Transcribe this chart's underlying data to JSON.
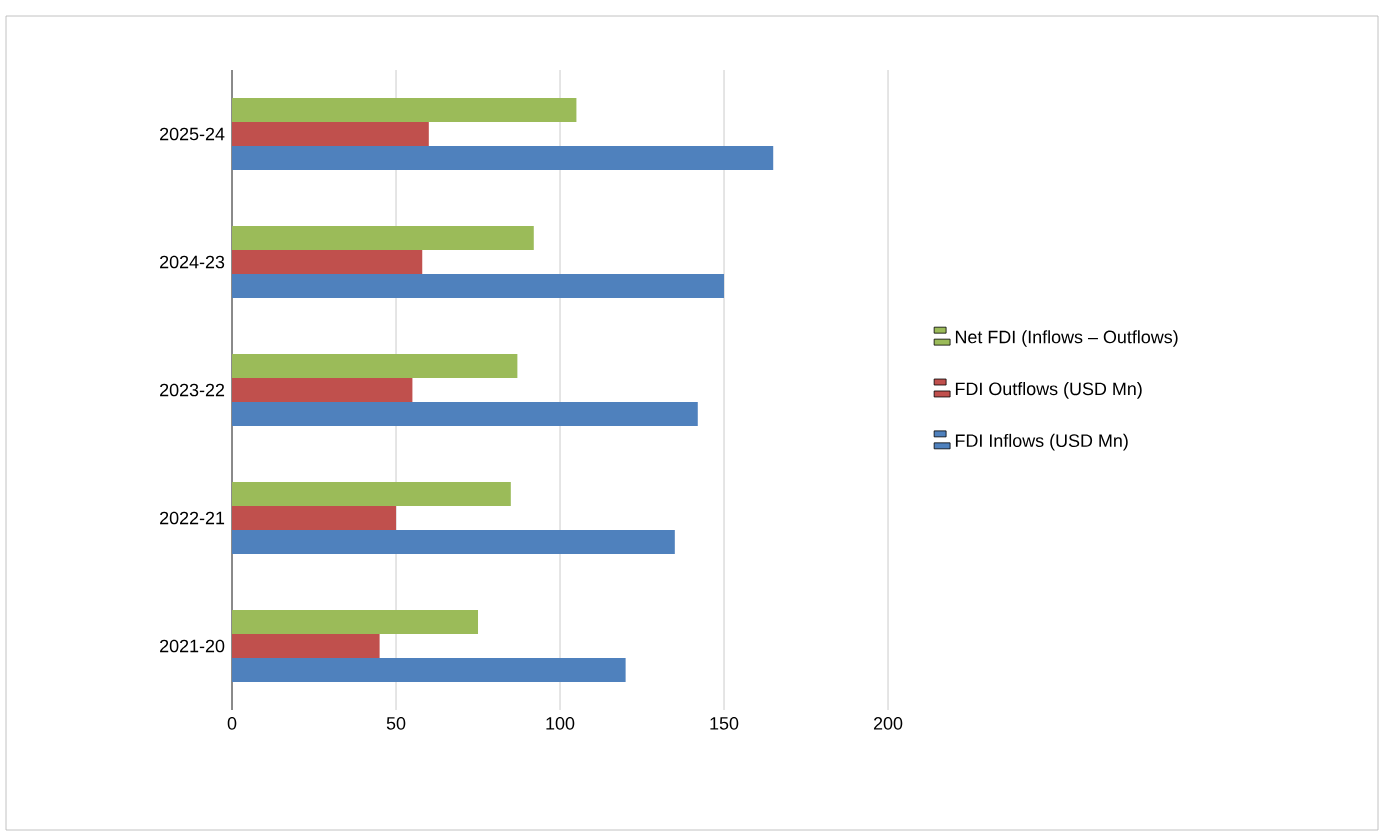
{
  "chart_data": {
    "type": "bar",
    "orientation": "horizontal",
    "categories": [
      "2025-24",
      "2024-23",
      "2023-22",
      "2022-21",
      "2021-20"
    ],
    "series": [
      {
        "name": "FDI Inflows (USD Mn)",
        "color": "#4f81bd",
        "values": [
          165,
          150,
          142,
          135,
          120
        ]
      },
      {
        "name": "FDI Outflows (USD Mn)",
        "color": "#c0504d",
        "values": [
          60,
          58,
          55,
          50,
          45
        ]
      },
      {
        "name": "Net FDI (Inflows – Outflows)",
        "color": "#9bbb59",
        "values": [
          105,
          92,
          87,
          85,
          75
        ]
      }
    ],
    "xlim": [
      0,
      200
    ],
    "xticks": [
      0,
      50,
      100,
      150,
      200
    ],
    "grid": "x",
    "legend": "right"
  }
}
